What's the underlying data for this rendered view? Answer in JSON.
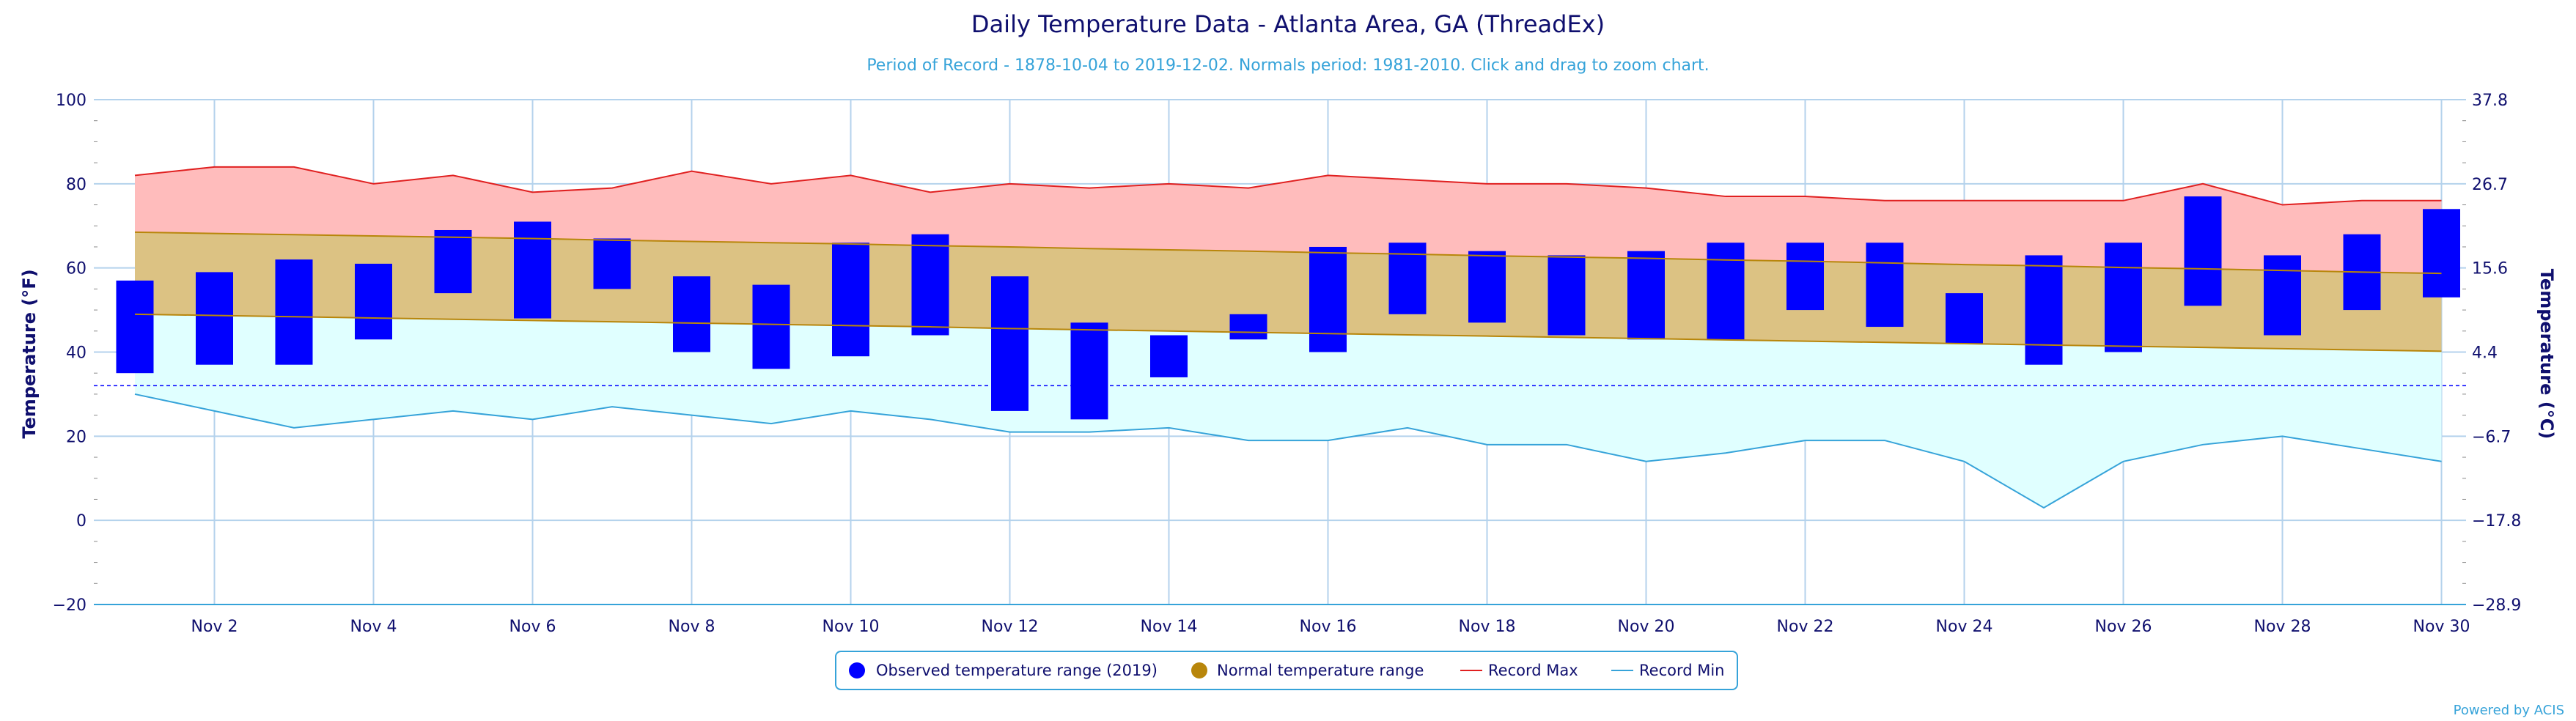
{
  "chart_data": {
    "type": "bar",
    "title": "Daily Temperature Data - Atlanta Area, GA (ThreadEx)",
    "subtitle": "Period of Record - 1878-10-04 to 2019-12-02. Normals period: 1981-2010. Click and drag to zoom chart.",
    "ylabel": "Temperature (°F)",
    "ylabel_right": "Temperature (°C)",
    "ylim": [
      -20,
      100
    ],
    "yticks": [
      "-20",
      "0",
      "20",
      "40",
      "60",
      "80",
      "100"
    ],
    "yticks_right": [
      "-28.9",
      "-17.8",
      "-6.7",
      "4.4",
      "15.6",
      "26.7",
      "37.8"
    ],
    "xticks": [
      "Nov 2",
      "Nov 4",
      "Nov 6",
      "Nov 8",
      "Nov 10",
      "Nov 12",
      "Nov 14",
      "Nov 16",
      "Nov 18",
      "Nov 20",
      "Nov 22",
      "Nov 24",
      "Nov 26",
      "Nov 28",
      "Nov 30"
    ],
    "days": [
      1,
      2,
      3,
      4,
      5,
      6,
      7,
      8,
      9,
      10,
      11,
      12,
      13,
      14,
      15,
      16,
      17,
      18,
      19,
      20,
      21,
      22,
      23,
      24,
      25,
      26,
      27,
      28,
      29,
      30
    ],
    "freezing_line": 32,
    "grid": true,
    "legend_position": "bottom-center",
    "series": [
      {
        "name": "Observed temperature range (2019)",
        "color": "#0000ff",
        "low": [
          35,
          37,
          37,
          43,
          54,
          48,
          55,
          40,
          36,
          39,
          44,
          26,
          24,
          34,
          43,
          40,
          49,
          47,
          44,
          43,
          43,
          50,
          46,
          42,
          37,
          40,
          51,
          44,
          50,
          53
        ],
        "high": [
          57,
          59,
          62,
          61,
          69,
          71,
          67,
          58,
          56,
          66,
          68,
          58,
          47,
          44,
          49,
          65,
          66,
          64,
          63,
          64,
          66,
          66,
          66,
          54,
          63,
          66,
          77,
          63,
          68,
          74
        ]
      },
      {
        "name": "Normal temperature range",
        "color": "#b8860b",
        "low": [
          49,
          48.7,
          48.4,
          48.1,
          47.8,
          47.5,
          47.2,
          46.9,
          46.6,
          46.3,
          46,
          45.6,
          45.3,
          45,
          44.7,
          44.4,
          44.1,
          43.8,
          43.5,
          43.2,
          42.9,
          42.6,
          42.3,
          42,
          41.7,
          41.4,
          41.1,
          40.8,
          40.5,
          40.2
        ],
        "high": [
          68.5,
          68.2,
          67.9,
          67.6,
          67.3,
          67,
          66.6,
          66.3,
          66,
          65.7,
          65.3,
          65,
          64.6,
          64.3,
          64,
          63.6,
          63.3,
          62.9,
          62.6,
          62.3,
          61.9,
          61.6,
          61.2,
          60.8,
          60.5,
          60.1,
          59.8,
          59.4,
          59,
          58.7
        ]
      },
      {
        "name": "Record Max",
        "color": "#e02020",
        "values": [
          82,
          84,
          84,
          80,
          82,
          78,
          79,
          83,
          80,
          82,
          78,
          80,
          79,
          80,
          79,
          82,
          81,
          80,
          80,
          79,
          77,
          77,
          76,
          76,
          76,
          76,
          80,
          75,
          76,
          76
        ]
      },
      {
        "name": "Record Min",
        "color": "#36a3d9",
        "values": [
          30,
          26,
          22,
          24,
          26,
          24,
          27,
          25,
          23,
          26,
          24,
          21,
          21,
          22,
          19,
          19,
          22,
          18,
          18,
          14,
          16,
          19,
          19,
          14,
          3,
          14,
          18,
          20,
          17,
          14
        ]
      }
    ]
  },
  "credit": "Powered by ACIS"
}
